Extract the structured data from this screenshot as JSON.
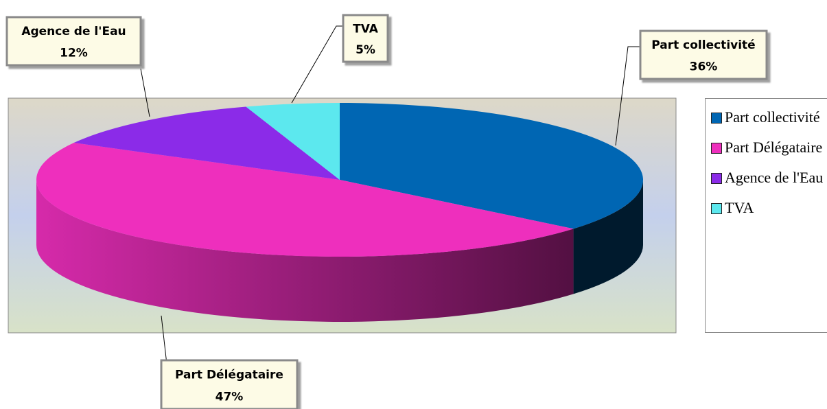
{
  "chart_data": {
    "type": "pie3d",
    "categories": [
      "Part collectivité",
      "Part Délégataire",
      "Agence de l'Eau",
      "TVA"
    ],
    "values": [
      36,
      47,
      12,
      5
    ],
    "value_labels": [
      "36%",
      "47%",
      "12%",
      "5%"
    ],
    "colors": [
      "#0066b3",
      "#ee2fbd",
      "#8b2be8",
      "#5ce8ee"
    ],
    "legend": "right"
  }
}
